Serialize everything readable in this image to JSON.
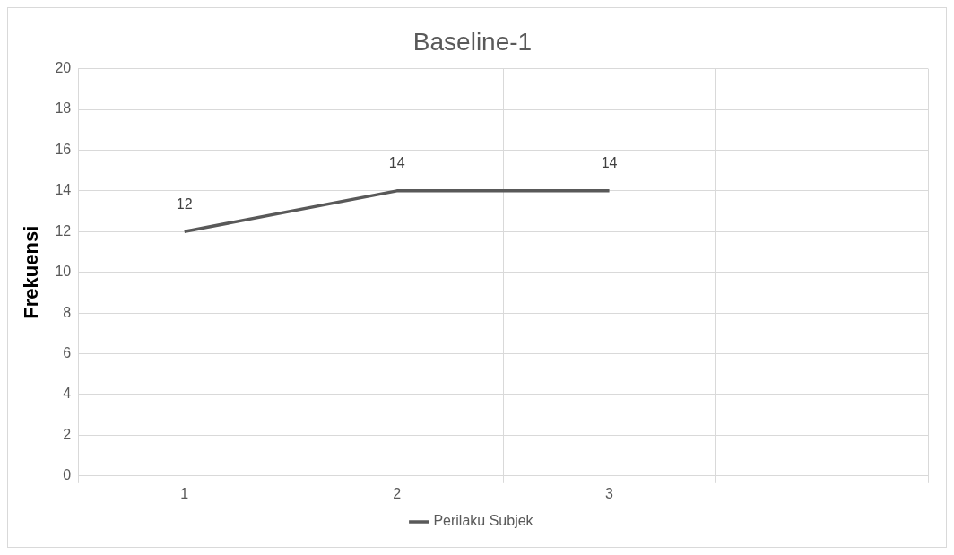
{
  "chart_data": {
    "type": "line",
    "title": "Baseline-1",
    "ylabel": "Frekuensi",
    "categories": [
      "1",
      "2",
      "3",
      null
    ],
    "series": [
      {
        "name": "Perilaku Subjek",
        "color": "#595959",
        "values": [
          12,
          14,
          14,
          null
        ]
      }
    ],
    "ylim": [
      0,
      20
    ],
    "yticks": [
      0,
      2,
      4,
      6,
      8,
      10,
      12,
      14,
      16,
      18,
      20
    ],
    "grid": true,
    "legend": "bottom",
    "data_labels": true,
    "marker": "none",
    "line_style": "solid"
  }
}
